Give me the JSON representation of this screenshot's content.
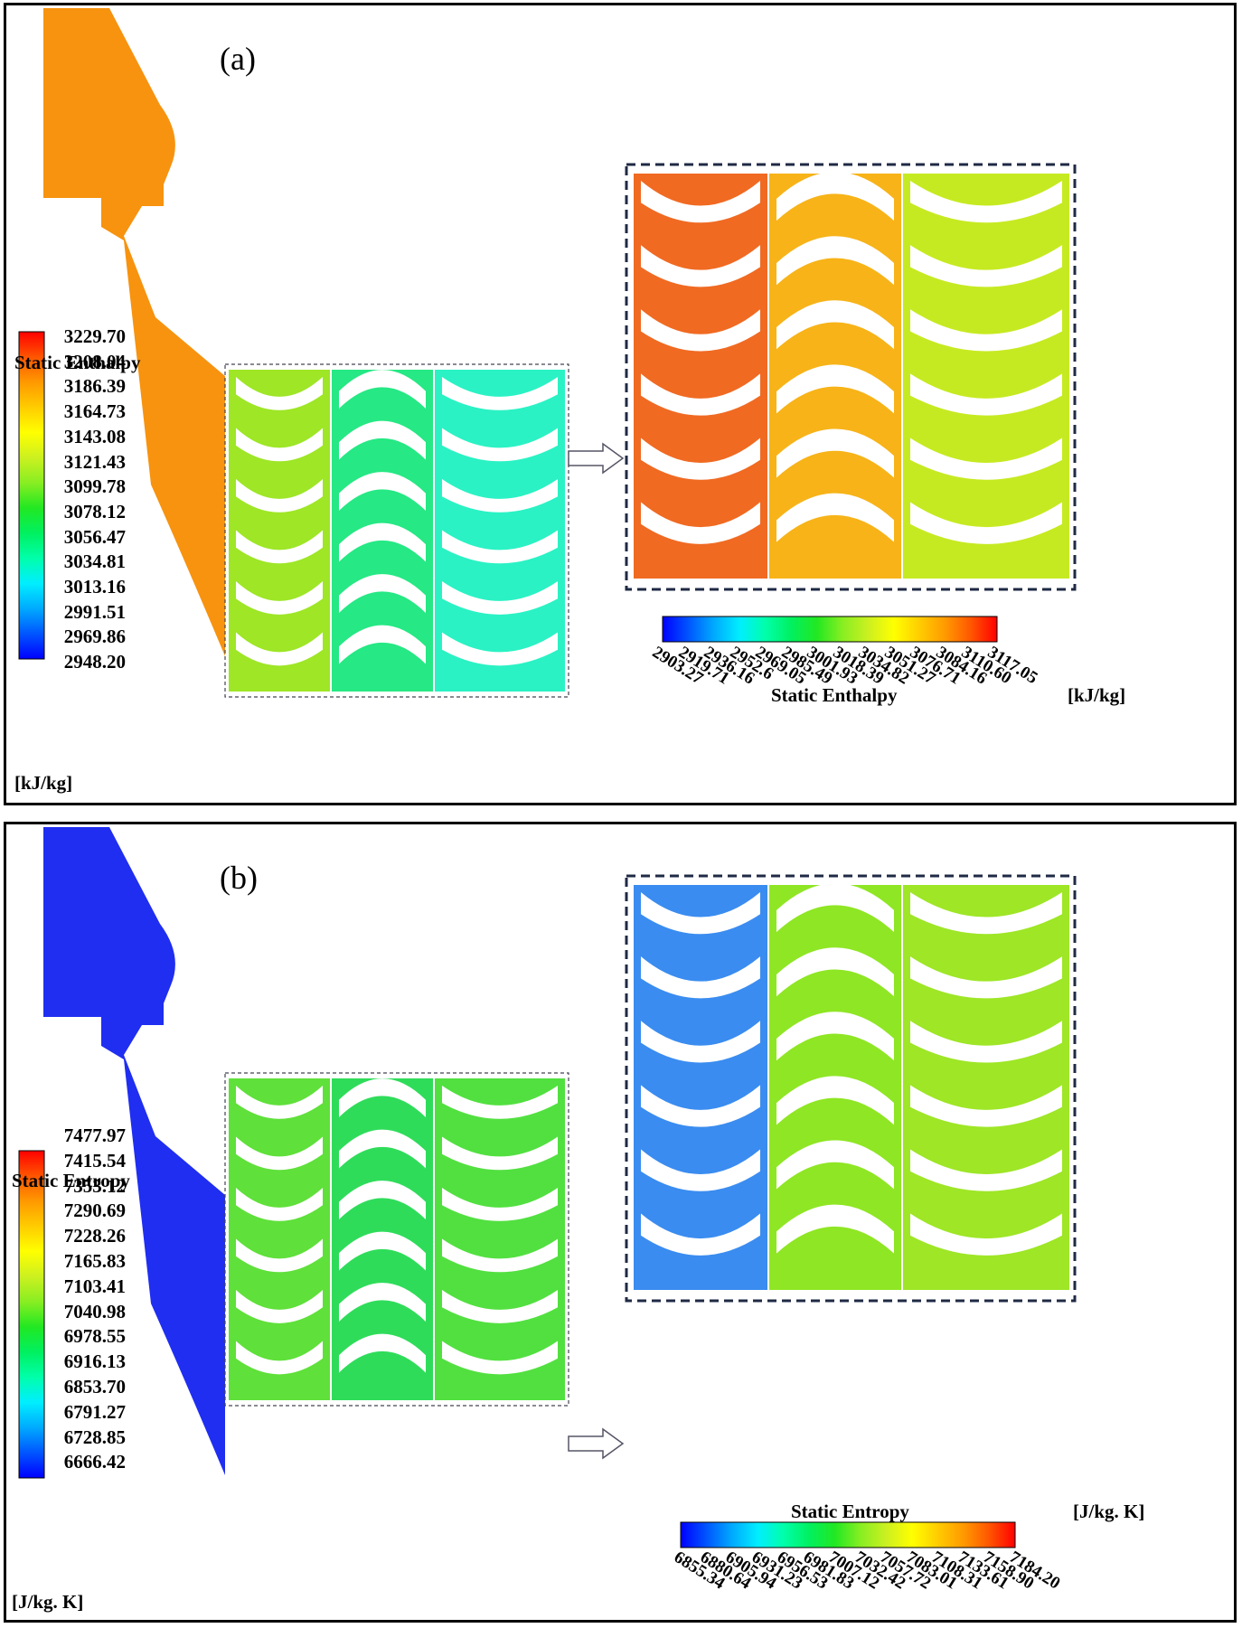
{
  "panel_a": {
    "label": "(a)",
    "legend_vertical": {
      "title": "Static Enthalpy",
      "unit": "[kJ/kg]",
      "values": [
        "3229.70",
        "3208.04",
        "3186.39",
        "3164.73",
        "3143.08",
        "3121.43",
        "3099.78",
        "3078.12",
        "3056.47",
        "3034.81",
        "3013.16",
        "2991.51",
        "2969.86",
        "2948.20"
      ]
    },
    "legend_horizontal": {
      "title": "Static Enthalpy",
      "unit": "[kJ/kg]",
      "values": [
        "2903.27",
        "2919.71",
        "2936.16",
        "2952.6",
        "2969.05",
        "2985.49",
        "3001.93",
        "3018.39",
        "3034.82",
        "3051.27",
        "3076.71",
        "3084.16",
        "3110.60",
        "3117.05"
      ]
    },
    "colors": {
      "inlet": "#f7930f",
      "row1": "#9ee626",
      "row2": "#26e884",
      "row3": "#2af2c4",
      "zoom_row1": "#f06a22",
      "zoom_row2": "#f7b318",
      "zoom_row3": "#c6ea21"
    }
  },
  "panel_b": {
    "label": "(b)",
    "legend_vertical": {
      "title": "Static Entropy",
      "unit": "[J/kg. K]",
      "values": [
        "7477.97",
        "7415.54",
        "7353.12",
        "7290.69",
        "7228.26",
        "7165.83",
        "7103.41",
        "7040.98",
        "6978.55",
        "6916.13",
        "6853.70",
        "6791.27",
        "6728.85",
        "6666.42"
      ]
    },
    "legend_horizontal": {
      "title": "Static Entropy",
      "unit": "[J/kg. K]",
      "values": [
        "6855.34",
        "6880.64",
        "6905.94",
        "6931.23",
        "6956.53",
        "6981.83",
        "7007.12",
        "7032.42",
        "7057.72",
        "7083.01",
        "7108.31",
        "7133.61",
        "7158.90",
        "7184.20"
      ]
    },
    "colors": {
      "inlet": "#1f2ef0",
      "row1": "#5fe03a",
      "row2": "#2fdc5a",
      "row3": "#52e040",
      "zoom_row1": "#3a8cf0",
      "zoom_row2": "#8fe624",
      "zoom_row3": "#9ee626"
    }
  }
}
